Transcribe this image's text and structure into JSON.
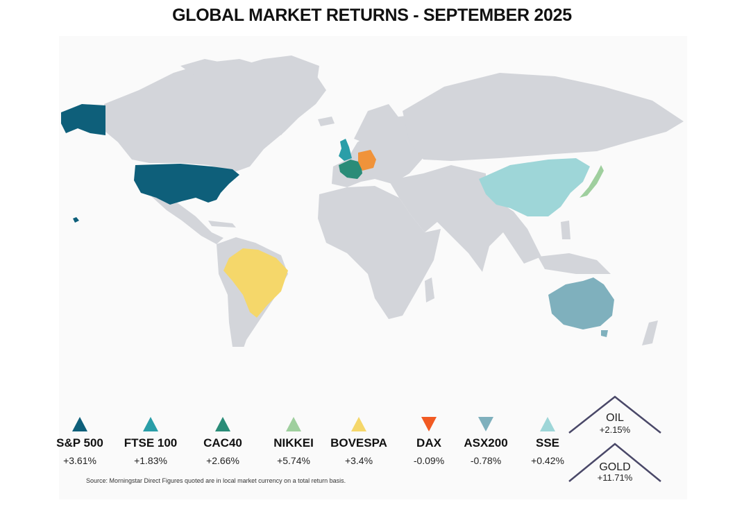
{
  "title": "GLOBAL MARKET RETURNS - SEPTEMBER 2025",
  "legend": [
    {
      "name": "S&P 500",
      "value": "+3.61%",
      "direction": "up",
      "color": "#0e5f7a"
    },
    {
      "name": "FTSE 100",
      "value": "+1.83%",
      "direction": "up",
      "color": "#2a9ea8"
    },
    {
      "name": "CAC40",
      "value": "+2.66%",
      "direction": "up",
      "color": "#2a8c78"
    },
    {
      "name": "NIKKEI",
      "value": "+5.74%",
      "direction": "up",
      "color": "#9fcf9e"
    },
    {
      "name": "BOVESPA",
      "value": "+3.4%",
      "direction": "up",
      "color": "#f5d76a"
    },
    {
      "name": "DAX",
      "value": "-0.09%",
      "direction": "down",
      "color": "#f15a22"
    },
    {
      "name": "ASX200",
      "value": "-0.78%",
      "direction": "down",
      "color": "#7fb0bd"
    },
    {
      "name": "SSE",
      "value": "+0.42%",
      "direction": "up",
      "color": "#9ed6d8"
    }
  ],
  "commodities": {
    "oil": {
      "name": "OIL",
      "value": "+2.15%"
    },
    "gold": {
      "name": "GOLD",
      "value": "+11.71%"
    }
  },
  "source": "Source:  Morningstar Direct Figures quoted are in local market currency on a total return basis.",
  "colors": {
    "land": "#d3d5da",
    "usa": "#0e5f7a",
    "uk": "#2a9ea8",
    "france": "#2a8c78",
    "germany": "#f0933a",
    "japan": "#9fcf9e",
    "brazil": "#f5d76a",
    "australia": "#7fb0bd",
    "china": "#9ed6d8",
    "commodity_outline": "#4a4868"
  }
}
